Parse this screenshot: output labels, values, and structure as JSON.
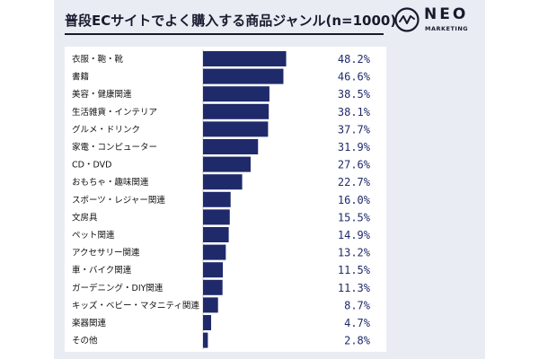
{
  "title": "普段ECサイトでよく購入する商品ジャンル(n=1000)",
  "logo": {
    "word": "NEO",
    "sub": "MARKETING"
  },
  "colors": {
    "bar": "#1f2a6b",
    "value": "#1f2a6b",
    "label": "#111111",
    "panel": "#e9edf3"
  },
  "chart_data": {
    "type": "bar",
    "orientation": "horizontal",
    "title": "普段ECサイトでよく購入する商品ジャンル(n=1000)",
    "xlabel": "",
    "ylabel": "",
    "xlim": [
      0,
      50
    ],
    "grid": false,
    "categories": [
      "衣服・鞄・靴",
      "書籍",
      "美容・健康関連",
      "生活雑貨・インテリア",
      "グルメ・ドリンク",
      "家電・コンピューター",
      "CD・DVD",
      "おもちゃ・趣味関連",
      "スポーツ・レジャー関連",
      "文房具",
      "ペット関連",
      "アクセサリー関連",
      "車・バイク関連",
      "ガーデニング・DIY関連",
      "キッズ・ベビー・マタニティ関連",
      "楽器関連",
      "その他"
    ],
    "values": [
      48.2,
      46.6,
      38.5,
      38.1,
      37.7,
      31.9,
      27.6,
      22.7,
      16.0,
      15.5,
      14.9,
      13.2,
      11.5,
      11.3,
      8.7,
      4.7,
      2.8
    ],
    "value_labels": [
      "48.2%",
      "46.6%",
      "38.5%",
      "38.1%",
      "37.7%",
      "31.9%",
      "27.6%",
      "22.7%",
      "16.0%",
      "15.5%",
      "14.9%",
      "13.2%",
      "11.5%",
      "11.3%",
      "8.7%",
      "4.7%",
      "2.8%"
    ]
  }
}
